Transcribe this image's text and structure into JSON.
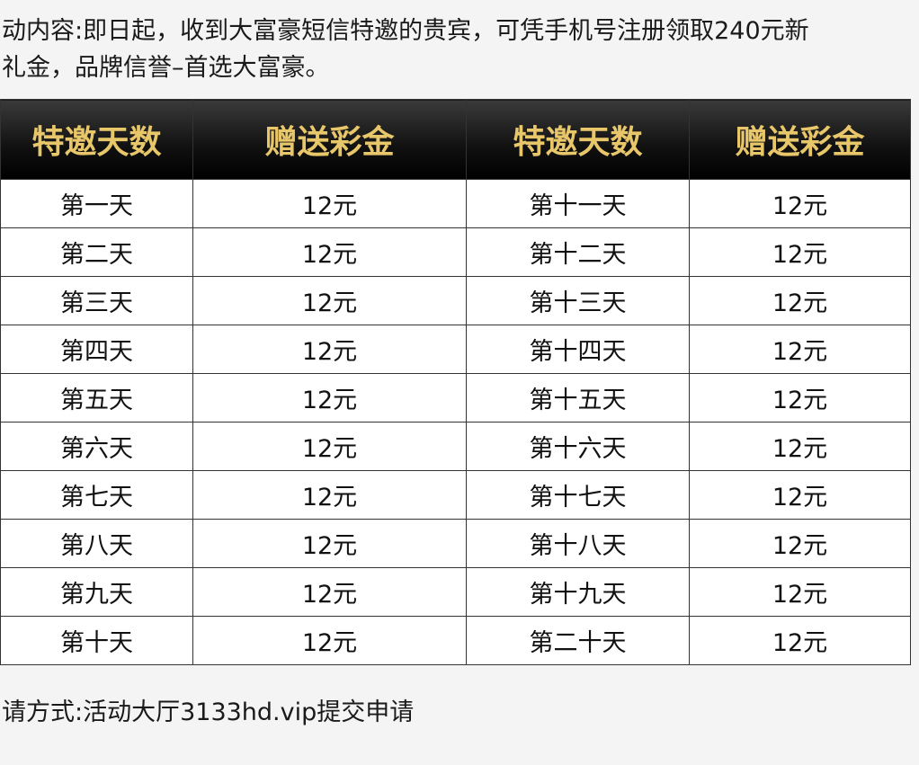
{
  "intro": {
    "line1": "动内容:即日起，收到大富豪短信特邀的贵宾，可凭手机号注册领取240元新",
    "line2": "礼金，品牌信誉–首选大富豪。"
  },
  "table": {
    "headers": [
      "特邀天数",
      "赠送彩金",
      "特邀天数",
      "赠送彩金"
    ],
    "rows": [
      [
        "第一天",
        "12元",
        "第十一天",
        "12元"
      ],
      [
        "第二天",
        "12元",
        "第十二天",
        "12元"
      ],
      [
        "第三天",
        "12元",
        "第十三天",
        "12元"
      ],
      [
        "第四天",
        "12元",
        "第十四天",
        "12元"
      ],
      [
        "第五天",
        "12元",
        "第十五天",
        "12元"
      ],
      [
        "第六天",
        "12元",
        "第十六天",
        "12元"
      ],
      [
        "第七天",
        "12元",
        "第十七天",
        "12元"
      ],
      [
        "第八天",
        "12元",
        "第十八天",
        "12元"
      ],
      [
        "第九天",
        "12元",
        "第十九天",
        "12元"
      ],
      [
        "第十天",
        "12元",
        "第二十天",
        "12元"
      ]
    ]
  },
  "footer": {
    "text": "请方式:活动大厅3133hd.vip提交申请"
  },
  "colors": {
    "header_text": "#e8c66a",
    "header_bg": "#000000"
  }
}
